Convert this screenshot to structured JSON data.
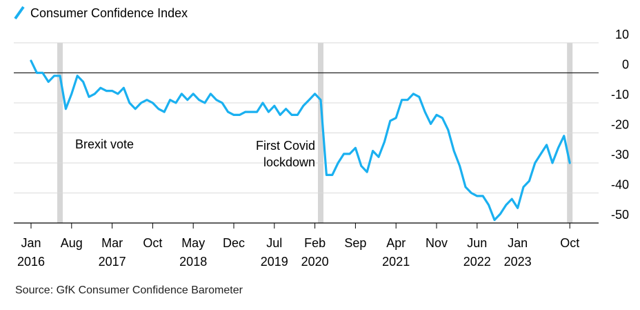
{
  "chart_data": {
    "type": "line",
    "legend": [
      {
        "name": "Consumer Confidence Index",
        "color": "#1ab0f0"
      }
    ],
    "series": [
      {
        "name": "Consumer Confidence Index",
        "color": "#1ab0f0",
        "points": [
          [
            "2016-01",
            4
          ],
          [
            "2016-02",
            0
          ],
          [
            "2016-03",
            0
          ],
          [
            "2016-04",
            -3
          ],
          [
            "2016-05",
            -1
          ],
          [
            "2016-06",
            -1
          ],
          [
            "2016-07",
            -12
          ],
          [
            "2016-08",
            -7
          ],
          [
            "2016-09",
            -1
          ],
          [
            "2016-10",
            -3
          ],
          [
            "2016-11",
            -8
          ],
          [
            "2016-12",
            -7
          ],
          [
            "2017-01",
            -5
          ],
          [
            "2017-02",
            -6
          ],
          [
            "2017-03",
            -6
          ],
          [
            "2017-04",
            -7
          ],
          [
            "2017-05",
            -5
          ],
          [
            "2017-06",
            -10
          ],
          [
            "2017-07",
            -12
          ],
          [
            "2017-08",
            -10
          ],
          [
            "2017-09",
            -9
          ],
          [
            "2017-10",
            -10
          ],
          [
            "2017-11",
            -12
          ],
          [
            "2017-12",
            -13
          ],
          [
            "2018-01",
            -9
          ],
          [
            "2018-02",
            -10
          ],
          [
            "2018-03",
            -7
          ],
          [
            "2018-04",
            -9
          ],
          [
            "2018-05",
            -7
          ],
          [
            "2018-06",
            -9
          ],
          [
            "2018-07",
            -10
          ],
          [
            "2018-08",
            -7
          ],
          [
            "2018-09",
            -9
          ],
          [
            "2018-10",
            -10
          ],
          [
            "2018-11",
            -13
          ],
          [
            "2018-12",
            -14
          ],
          [
            "2019-01",
            -14
          ],
          [
            "2019-02",
            -13
          ],
          [
            "2019-03",
            -13
          ],
          [
            "2019-04",
            -13
          ],
          [
            "2019-05",
            -10
          ],
          [
            "2019-06",
            -13
          ],
          [
            "2019-07",
            -11
          ],
          [
            "2019-08",
            -14
          ],
          [
            "2019-09",
            -12
          ],
          [
            "2019-10",
            -14
          ],
          [
            "2019-11",
            -14
          ],
          [
            "2019-12",
            -11
          ],
          [
            "2020-01",
            -9
          ],
          [
            "2020-02",
            -7
          ],
          [
            "2020-03",
            -9
          ],
          [
            "2020-04",
            -34
          ],
          [
            "2020-05",
            -34
          ],
          [
            "2020-06",
            -30
          ],
          [
            "2020-07",
            -27
          ],
          [
            "2020-08",
            -27
          ],
          [
            "2020-09",
            -25
          ],
          [
            "2020-10",
            -31
          ],
          [
            "2020-11",
            -33
          ],
          [
            "2020-12",
            -26
          ],
          [
            "2021-01",
            -28
          ],
          [
            "2021-02",
            -23
          ],
          [
            "2021-03",
            -16
          ],
          [
            "2021-04",
            -15
          ],
          [
            "2021-05",
            -9
          ],
          [
            "2021-06",
            -9
          ],
          [
            "2021-07",
            -7
          ],
          [
            "2021-08",
            -8
          ],
          [
            "2021-09",
            -13
          ],
          [
            "2021-10",
            -17
          ],
          [
            "2021-11",
            -14
          ],
          [
            "2021-12",
            -15
          ],
          [
            "2022-01",
            -19
          ],
          [
            "2022-02",
            -26
          ],
          [
            "2022-03",
            -31
          ],
          [
            "2022-04",
            -38
          ],
          [
            "2022-05",
            -40
          ],
          [
            "2022-06",
            -41
          ],
          [
            "2022-07",
            -41
          ],
          [
            "2022-08",
            -44
          ],
          [
            "2022-09",
            -49
          ],
          [
            "2022-10",
            -47
          ],
          [
            "2022-11",
            -44
          ],
          [
            "2022-12",
            -42
          ],
          [
            "2023-01",
            -45
          ],
          [
            "2023-02",
            -38
          ],
          [
            "2023-03",
            -36
          ],
          [
            "2023-04",
            -30
          ],
          [
            "2023-05",
            -27
          ],
          [
            "2023-06",
            -24
          ],
          [
            "2023-07",
            -30
          ],
          [
            "2023-08",
            -25
          ],
          [
            "2023-09",
            -21
          ],
          [
            "2023-10",
            -30
          ]
        ]
      }
    ],
    "x_ticks": [
      {
        "date": "2016-01",
        "month": "Jan",
        "year": "2016"
      },
      {
        "date": "2016-08",
        "month": "Aug",
        "year": ""
      },
      {
        "date": "2017-03",
        "month": "Mar",
        "year": "2017"
      },
      {
        "date": "2017-10",
        "month": "Oct",
        "year": ""
      },
      {
        "date": "2018-05",
        "month": "May",
        "year": "2018"
      },
      {
        "date": "2018-12",
        "month": "Dec",
        "year": ""
      },
      {
        "date": "2019-07",
        "month": "Jul",
        "year": "2019"
      },
      {
        "date": "2020-02",
        "month": "Feb",
        "year": "2020"
      },
      {
        "date": "2020-09",
        "month": "Sep",
        "year": ""
      },
      {
        "date": "2021-04",
        "month": "Apr",
        "year": "2021"
      },
      {
        "date": "2021-11",
        "month": "Nov",
        "year": ""
      },
      {
        "date": "2022-06",
        "month": "Jun",
        "year": "2022"
      },
      {
        "date": "2023-01",
        "month": "Jan",
        "year": "2023"
      },
      {
        "date": "2023-10",
        "month": "Oct",
        "year": ""
      }
    ],
    "y_ticks": [
      10,
      0,
      -10,
      -20,
      -30,
      -40,
      -50
    ],
    "ylim": [
      -50,
      10
    ],
    "xlim": [
      "2016-01",
      "2023-12"
    ],
    "grid": true,
    "zero_line": true,
    "y_axis_side": "right",
    "event_bands": [
      {
        "date": "2016-06",
        "label_lines": [
          "Brexit vote"
        ]
      },
      {
        "date": "2020-03",
        "label_lines": [
          "First Covid",
          "lockdown"
        ]
      },
      {
        "date": "2023-10",
        "label_lines": []
      }
    ],
    "source": "Source: GfK Consumer Confidence Barometer"
  }
}
